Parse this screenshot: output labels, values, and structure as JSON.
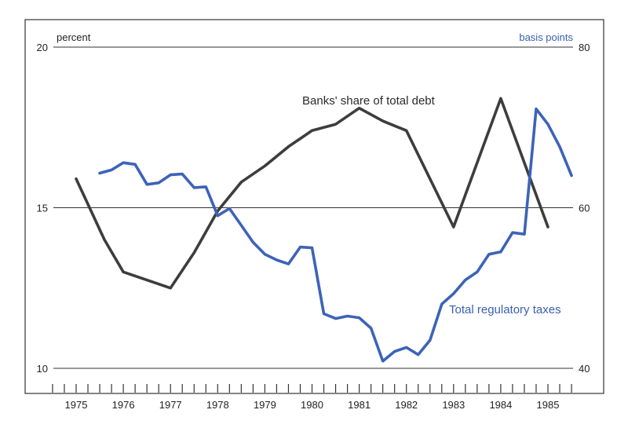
{
  "chart_data": {
    "type": "line",
    "x_ticks": [
      "1975",
      "1976",
      "1977",
      "1978",
      "1979",
      "1980",
      "1981",
      "1982",
      "1983",
      "1984",
      "1985"
    ],
    "xlim": [
      1974.5,
      1986.0
    ],
    "left_axis": {
      "unit": "percent",
      "range": [
        10,
        20
      ],
      "ticks": [
        "10",
        "15",
        "20"
      ]
    },
    "right_axis": {
      "unit": "basis points",
      "range": [
        40,
        80
      ],
      "ticks": [
        "40",
        "60",
        "80"
      ]
    },
    "grid": "horizontal at major ticks",
    "series": [
      {
        "name": "Banks' share of total debt",
        "axis": "left",
        "color": "#3d3d3d",
        "x": [
          1975.0,
          1975.6,
          1976.0,
          1977.0,
          1977.5,
          1978.0,
          1978.5,
          1979.0,
          1979.5,
          1980.0,
          1980.5,
          1981.0,
          1981.5,
          1982.0,
          1983.0,
          1984.0,
          1985.0
        ],
        "y": [
          15.9,
          14.0,
          13.0,
          12.5,
          13.6,
          14.9,
          15.8,
          16.3,
          16.9,
          17.4,
          17.6,
          18.1,
          17.7,
          17.4,
          14.4,
          18.4,
          14.4
        ]
      },
      {
        "name": "Total regulatory taxes",
        "axis": "right",
        "color": "#3d63b8",
        "x": [
          1975.5,
          1975.75,
          1976.0,
          1976.25,
          1976.5,
          1976.75,
          1977.0,
          1977.25,
          1977.5,
          1977.75,
          1978.0,
          1978.25,
          1978.5,
          1978.75,
          1979.0,
          1979.25,
          1979.5,
          1979.75,
          1980.0,
          1980.25,
          1980.5,
          1980.75,
          1981.0,
          1981.25,
          1981.5,
          1981.75,
          1982.0,
          1982.25,
          1982.5,
          1982.75,
          1983.0,
          1983.25,
          1983.5,
          1983.75,
          1984.0,
          1984.25,
          1984.5,
          1984.75,
          1985.0,
          1985.25,
          1985.5
        ],
        "y": [
          64.3,
          64.7,
          65.6,
          65.4,
          62.9,
          63.1,
          64.1,
          64.2,
          62.5,
          62.6,
          59.0,
          59.9,
          57.8,
          55.7,
          54.2,
          53.5,
          53.0,
          55.1,
          55.0,
          46.8,
          46.2,
          46.5,
          46.3,
          45.0,
          40.9,
          42.1,
          42.6,
          41.7,
          43.5,
          48.0,
          49.3,
          51.0,
          52.0,
          54.2,
          54.5,
          56.9,
          56.7,
          72.3,
          70.4,
          67.6,
          64.0
        ]
      }
    ]
  }
}
